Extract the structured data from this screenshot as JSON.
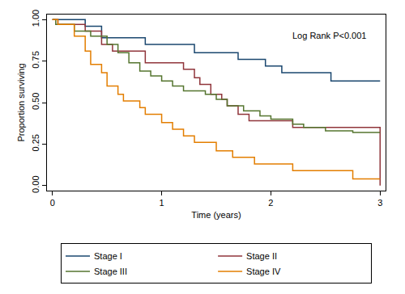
{
  "chart_data": {
    "type": "line",
    "x_label": "Time (years)",
    "y_label": "Proportion surviving",
    "annotations": [
      "Log Rank P<0.001"
    ],
    "xlim": [
      -0.05,
      3.05
    ],
    "xticks": [
      0,
      1,
      2,
      3
    ],
    "ylim": [
      -0.03,
      1.03
    ],
    "yticks": [
      {
        "value": 0,
        "label": "0.00"
      },
      {
        "value": 0.25,
        "label": "0.25"
      },
      {
        "value": 0.5,
        "label": "0.50"
      },
      {
        "value": 0.75,
        "label": "0.75"
      },
      {
        "value": 1,
        "label": "1.00"
      }
    ],
    "grid": false,
    "legend": "bottom",
    "series": [
      {
        "name": "Stage I",
        "color": "#1a476f",
        "x": [
          0,
          0.3,
          0.45,
          0.85,
          1.3,
          1.7,
          1.95,
          2.1,
          2.55,
          3
        ],
        "values": [
          1,
          0.96,
          0.89,
          0.85,
          0.8,
          0.76,
          0.72,
          0.68,
          0.63,
          0.63
        ]
      },
      {
        "name": "Stage II",
        "color": "#90353b",
        "x": [
          0,
          0.05,
          0.3,
          0.45,
          0.55,
          0.85,
          1.2,
          1.3,
          1.35,
          1.45,
          1.55,
          1.6,
          1.7,
          1.8,
          2.2,
          2.999,
          3
        ],
        "values": [
          1,
          0.97,
          0.93,
          0.85,
          0.81,
          0.74,
          0.7,
          0.65,
          0.61,
          0.55,
          0.52,
          0.48,
          0.43,
          0.39,
          0.35,
          0.35,
          0
        ]
      },
      {
        "name": "Stage III",
        "color": "#55752f",
        "x": [
          0,
          0.03,
          0.2,
          0.35,
          0.5,
          0.6,
          0.7,
          0.8,
          0.9,
          1.0,
          1.1,
          1.2,
          1.4,
          1.5,
          1.6,
          1.75,
          1.9,
          2.0,
          2.2,
          2.3,
          2.5,
          2.75,
          3
        ],
        "values": [
          1,
          0.97,
          0.93,
          0.9,
          0.85,
          0.8,
          0.74,
          0.69,
          0.66,
          0.63,
          0.6,
          0.57,
          0.55,
          0.52,
          0.48,
          0.45,
          0.42,
          0.4,
          0.37,
          0.35,
          0.33,
          0.32,
          0.32
        ]
      },
      {
        "name": "Stage IV",
        "color": "#e37e00",
        "x": [
          0,
          0.05,
          0.2,
          0.3,
          0.35,
          0.45,
          0.5,
          0.6,
          0.65,
          0.8,
          0.85,
          1.0,
          1.1,
          1.2,
          1.3,
          1.5,
          1.65,
          1.85,
          2.2,
          2.75,
          3
        ],
        "values": [
          1,
          0.97,
          0.9,
          0.81,
          0.73,
          0.68,
          0.6,
          0.55,
          0.51,
          0.47,
          0.43,
          0.38,
          0.34,
          0.3,
          0.26,
          0.21,
          0.17,
          0.13,
          0.09,
          0.04,
          0.04
        ]
      }
    ]
  }
}
